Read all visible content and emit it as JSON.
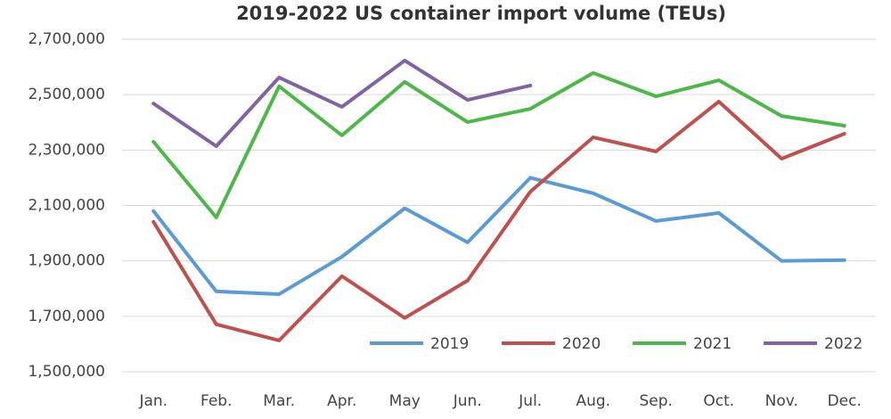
{
  "chart_data": {
    "type": "line",
    "title": "2019-2022 US container import volume (TEUs)",
    "categories": [
      "Jan.",
      "Feb.",
      "Mar.",
      "Apr.",
      "May",
      "Jun.",
      "Jul.",
      "Aug.",
      "Sep.",
      "Oct.",
      "Nov.",
      "Dec."
    ],
    "series": [
      {
        "name": "2019",
        "color": "#5b9bd5",
        "values": [
          2080000,
          1790000,
          1780000,
          1915000,
          2090000,
          1967000,
          2200000,
          2144000,
          2044000,
          2073000,
          1900000,
          1903000
        ]
      },
      {
        "name": "2020",
        "color": "#c0504d",
        "values": [
          2041000,
          1671000,
          1613000,
          1845000,
          1694000,
          1829000,
          2150000,
          2346000,
          2295000,
          2475000,
          2269000,
          2359000
        ]
      },
      {
        "name": "2021",
        "color": "#4cb848",
        "values": [
          2330000,
          2057000,
          2530000,
          2353000,
          2546000,
          2401000,
          2449000,
          2578000,
          2494000,
          2552000,
          2423000,
          2388000
        ]
      },
      {
        "name": "2022",
        "color": "#8064a2",
        "values": [
          2468000,
          2314000,
          2562000,
          2456000,
          2623000,
          2481000,
          2533000,
          null,
          null,
          null,
          null,
          null
        ]
      }
    ],
    "ylim": [
      1500000,
      2700000
    ],
    "yticks": [
      {
        "value": 1500000,
        "label": "1,500,000"
      },
      {
        "value": 1700000,
        "label": "1,700,000"
      },
      {
        "value": 1900000,
        "label": "1,900,000"
      },
      {
        "value": 2100000,
        "label": "2,100,000"
      },
      {
        "value": 2300000,
        "label": "2,300,000"
      },
      {
        "value": 2500000,
        "label": "2,500,000"
      },
      {
        "value": 2700000,
        "label": "2,700,000"
      }
    ],
    "grid": true,
    "legend": "lower right"
  }
}
